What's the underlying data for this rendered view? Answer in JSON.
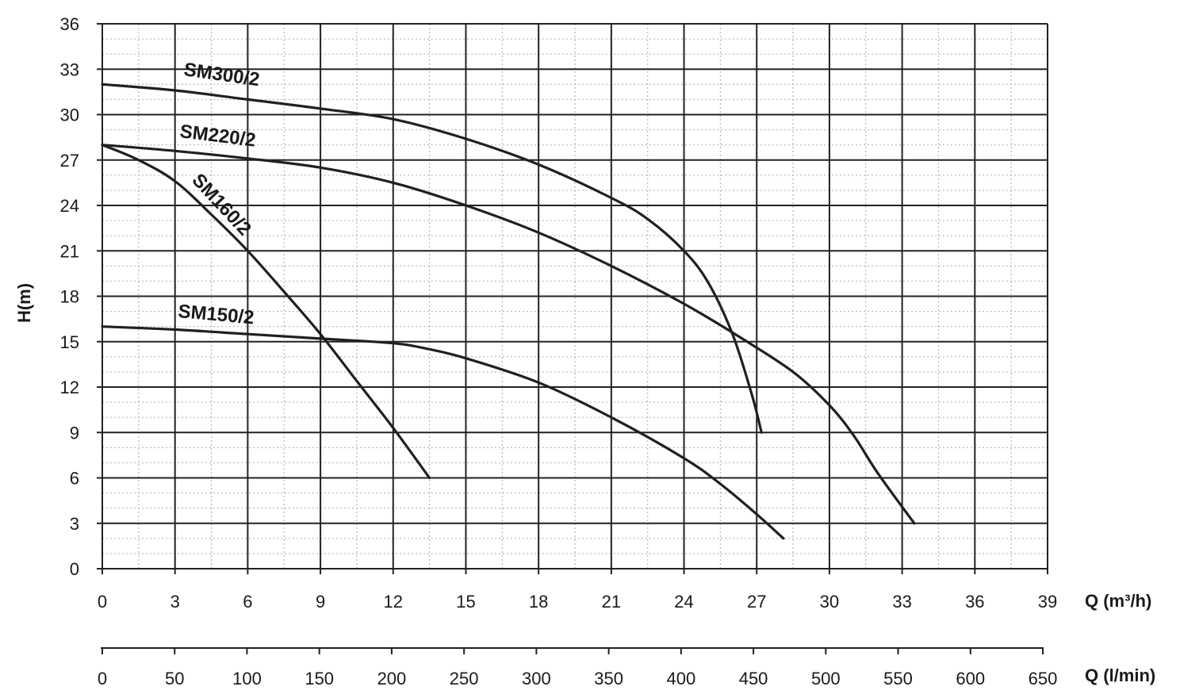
{
  "chart_data": {
    "type": "line",
    "ylabel": "H(m)",
    "xlabel": "Q (m³/h)",
    "x2label": "Q (l/min)",
    "xlim": [
      0,
      39
    ],
    "ylim": [
      0,
      36
    ],
    "x2lim": [
      0,
      650
    ],
    "x_ticks": [
      0,
      3,
      6,
      9,
      12,
      15,
      18,
      21,
      24,
      27,
      30,
      33,
      36,
      39
    ],
    "y_ticks": [
      0,
      3,
      6,
      9,
      12,
      15,
      18,
      21,
      24,
      27,
      30,
      33,
      36
    ],
    "x2_ticks": [
      0,
      50,
      100,
      150,
      200,
      250,
      300,
      350,
      400,
      450,
      500,
      550,
      600,
      650
    ],
    "grid": true,
    "series": [
      {
        "name": "SM300/2",
        "x": [
          0,
          3,
          6,
          9,
          12,
          15,
          18,
          21,
          22.5,
          24,
          25,
          26,
          26.8,
          27.2
        ],
        "y": [
          32,
          31.6,
          31,
          30.4,
          29.7,
          28.4,
          26.7,
          24.5,
          23.1,
          21,
          18.9,
          15.5,
          11.5,
          9
        ]
      },
      {
        "name": "SM220/2",
        "x": [
          0,
          3,
          6,
          9,
          12,
          15,
          18,
          21,
          24,
          26.4,
          28.5,
          30,
          31,
          32,
          33.5
        ],
        "y": [
          28,
          27.6,
          27.1,
          26.5,
          25.5,
          24,
          22.2,
          20,
          17.5,
          15.2,
          13,
          10.8,
          8.8,
          6.3,
          3
        ]
      },
      {
        "name": "SM160/2",
        "x": [
          0,
          1.5,
          3,
          4.5,
          6,
          7.5,
          9,
          10.5,
          12,
          13.5
        ],
        "y": [
          28,
          27,
          25.6,
          23.4,
          21,
          18.3,
          15.5,
          12.4,
          9.3,
          6
        ]
      },
      {
        "name": "SM150/2",
        "x": [
          0,
          3,
          6,
          9,
          12,
          13.5,
          15,
          18,
          21,
          24,
          25.5,
          27,
          28.1
        ],
        "y": [
          16,
          15.8,
          15.5,
          15.2,
          14.9,
          14.5,
          13.9,
          12.3,
          10,
          7.3,
          5.6,
          3.6,
          2
        ]
      }
    ]
  }
}
